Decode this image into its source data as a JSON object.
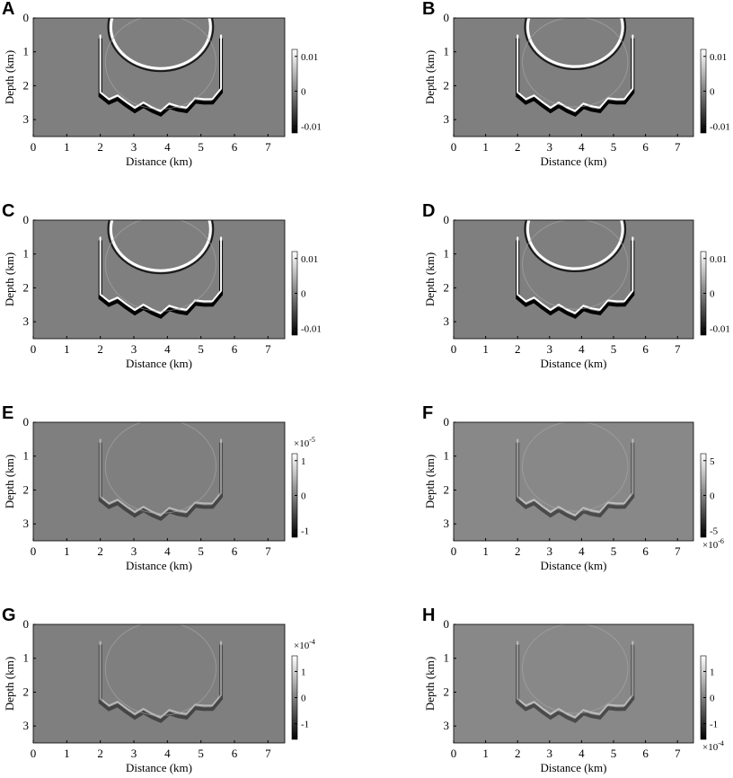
{
  "chart_data": [
    {
      "type": "heatmap",
      "label": "A",
      "xlabel": "Distance (km)",
      "ylabel": "Depth (km)",
      "xlim": [
        0,
        7.5
      ],
      "xticks": [
        0,
        1,
        2,
        3,
        4,
        5,
        6,
        7
      ],
      "ylim": [
        0,
        3.5
      ],
      "yticks": [
        0,
        1,
        2,
        3
      ],
      "clim": [
        -0.012,
        0.012
      ],
      "cticks": [
        0.01,
        0,
        -0.01
      ]
    },
    {
      "type": "heatmap",
      "label": "B",
      "xlabel": "Distance (km)",
      "ylabel": "Depth (km)",
      "xlim": [
        0,
        7.5
      ],
      "xticks": [
        0,
        1,
        2,
        3,
        4,
        5,
        6,
        7
      ],
      "ylim": [
        0,
        3.5
      ],
      "yticks": [
        0,
        1,
        2,
        3
      ],
      "clim": [
        -0.012,
        0.012
      ],
      "cticks": [
        0.01,
        0,
        -0.01
      ]
    },
    {
      "type": "heatmap",
      "label": "C",
      "xlabel": "Distance (km)",
      "ylabel": "Depth (km)",
      "xlim": [
        0,
        7.5
      ],
      "xticks": [
        0,
        1,
        2,
        3,
        4,
        5,
        6,
        7
      ],
      "ylim": [
        0,
        3.5
      ],
      "yticks": [
        0,
        1,
        2,
        3
      ],
      "clim": [
        -0.012,
        0.012
      ],
      "cticks": [
        0.01,
        0,
        -0.01
      ]
    },
    {
      "type": "heatmap",
      "label": "D",
      "xlabel": "Distance (km)",
      "ylabel": "Depth (km)",
      "xlim": [
        0,
        7.5
      ],
      "xticks": [
        0,
        1,
        2,
        3,
        4,
        5,
        6,
        7
      ],
      "ylim": [
        0,
        3.5
      ],
      "yticks": [
        0,
        1,
        2,
        3
      ],
      "clim": [
        -0.012,
        0.012
      ],
      "cticks": [
        0.01,
        0,
        -0.01
      ]
    },
    {
      "type": "heatmap",
      "label": "E",
      "xlabel": "Distance (km)",
      "ylabel": "Depth (km)",
      "xlim": [
        0,
        7.5
      ],
      "xticks": [
        0,
        1,
        2,
        3,
        4,
        5,
        6,
        7
      ],
      "ylim": [
        0,
        3.5
      ],
      "yticks": [
        0,
        1,
        2,
        3
      ],
      "clim": [
        -1.2,
        1.2
      ],
      "cticks": [
        1,
        0,
        -1
      ],
      "multiplier": {
        "base": "×10",
        "exponent": "-5",
        "position": "top"
      }
    },
    {
      "type": "heatmap",
      "label": "F",
      "xlabel": "Distance (km)",
      "ylabel": "Depth (km)",
      "xlim": [
        0,
        7.5
      ],
      "xticks": [
        0,
        1,
        2,
        3,
        4,
        5,
        6,
        7
      ],
      "ylim": [
        0,
        3.5
      ],
      "yticks": [
        0,
        1,
        2,
        3
      ],
      "clim": [
        -6,
        6
      ],
      "cticks": [
        5,
        0,
        -5
      ],
      "multiplier": {
        "base": "×10",
        "exponent": "-6",
        "position": "bottom"
      }
    },
    {
      "type": "heatmap",
      "label": "G",
      "xlabel": "Distance (km)",
      "ylabel": "Depth (km)",
      "xlim": [
        0,
        7.5
      ],
      "xticks": [
        0,
        1,
        2,
        3,
        4,
        5,
        6,
        7
      ],
      "ylim": [
        0,
        3.5
      ],
      "yticks": [
        0,
        1,
        2,
        3
      ],
      "clim": [
        -1.6,
        1.6
      ],
      "cticks": [
        1,
        0,
        -1
      ],
      "multiplier": {
        "base": "×10",
        "exponent": "-4",
        "position": "top"
      }
    },
    {
      "type": "heatmap",
      "label": "H",
      "xlabel": "Distance (km)",
      "ylabel": "Depth (km)",
      "xlim": [
        0,
        7.5
      ],
      "xticks": [
        0,
        1,
        2,
        3,
        4,
        5,
        6,
        7
      ],
      "ylim": [
        0,
        3.5
      ],
      "yticks": [
        0,
        1,
        2,
        3
      ],
      "clim": [
        -1.6,
        1.6
      ],
      "cticks": [
        1,
        0,
        -1
      ],
      "multiplier": {
        "base": "×10",
        "exponent": "-4",
        "position": "bottom"
      }
    }
  ]
}
